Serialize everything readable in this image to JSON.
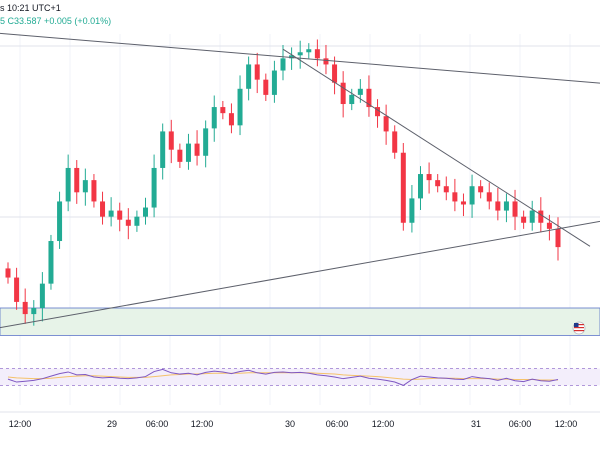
{
  "header": {
    "time_text": "s 10:21 UTC+1",
    "change_text": "C33.587  +0.005 (+0.01%)",
    "series_letter": "5"
  },
  "colors": {
    "up": "#22ab94",
    "down": "#f23645",
    "trendline": "#5d606b",
    "zone_fill": "#e7f3e8",
    "zone_border": "#5b74c7",
    "rsi_line": "#7e57c2",
    "rsi_ma": "#f5c26b",
    "rsi_band": "#f3eefb",
    "grid": "#f0f3fa"
  },
  "chart_data": {
    "type": "candlestick",
    "title": "",
    "x_ticks": [
      "12:00",
      "29",
      "06:00",
      "12:00",
      "30",
      "06:00",
      "12:00",
      "31",
      "06:00",
      "12:00"
    ],
    "y_axis_visible": false,
    "grid": true,
    "price_range": [
      33.2,
      34.1
    ],
    "price_series": {
      "close": [
        33.3,
        33.22,
        33.18,
        33.2,
        33.28,
        33.42,
        33.55,
        33.66,
        33.58,
        33.62,
        33.55,
        33.5,
        33.52,
        33.49,
        33.47,
        33.5,
        33.53,
        33.66,
        33.78,
        33.72,
        33.68,
        33.74,
        33.7,
        33.79,
        33.86,
        33.84,
        33.8,
        33.92,
        34.0,
        33.95,
        33.9,
        33.98,
        34.02,
        34.03,
        34.04,
        34.05,
        34.02,
        34.0,
        33.94,
        33.87,
        33.9,
        33.92,
        33.86,
        33.83,
        33.78,
        33.71,
        33.48,
        33.56,
        33.64,
        33.62,
        33.6,
        33.58,
        33.55,
        33.54,
        33.6,
        33.58,
        33.55,
        33.52,
        33.55,
        33.5,
        33.48,
        33.52,
        33.48,
        33.46,
        33.4
      ]
    },
    "support_zone": {
      "top": 33.2,
      "bottom": 33.11
    },
    "trendlines": [
      {
        "name": "",
        "from": {
          "i": 0,
          "price": 34.1
        },
        "to": {
          "i": 64,
          "price": 33.95
        }
      },
      {
        "name": "",
        "from": {
          "i": 32,
          "price": 34.05
        },
        "to": {
          "i": 64,
          "price": 33.47
        }
      },
      {
        "name": "",
        "from": {
          "i": 0,
          "price": 33.14
        },
        "to": {
          "i": 64,
          "price": 33.46
        }
      }
    ],
    "rsi": {
      "upper": 70,
      "lower": 30,
      "values": [
        45,
        38,
        40,
        42,
        46,
        52,
        58,
        62,
        55,
        56,
        50,
        48,
        49,
        47,
        46,
        48,
        51,
        63,
        68,
        60,
        57,
        59,
        55,
        61,
        64,
        62,
        58,
        63,
        66,
        60,
        57,
        61,
        62,
        60,
        61,
        59,
        55,
        53,
        50,
        46,
        49,
        52,
        47,
        45,
        42,
        38,
        30,
        44,
        52,
        50,
        48,
        47,
        45,
        44,
        51,
        48,
        46,
        42,
        47,
        41,
        39,
        45,
        41,
        40,
        44
      ],
      "ma": [
        50,
        48,
        47,
        46,
        46,
        47,
        49,
        51,
        52,
        53,
        53,
        52,
        51,
        50,
        49,
        49,
        49,
        51,
        53,
        55,
        56,
        57,
        57,
        58,
        59,
        59,
        59,
        59,
        60,
        60,
        60,
        60,
        60,
        60,
        60,
        60,
        59,
        58,
        57,
        55,
        54,
        53,
        52,
        51,
        49,
        47,
        45,
        44,
        45,
        46,
        47,
        47,
        47,
        46,
        46,
        46,
        46,
        45,
        45,
        44,
        44,
        44,
        43,
        43,
        43
      ]
    }
  }
}
